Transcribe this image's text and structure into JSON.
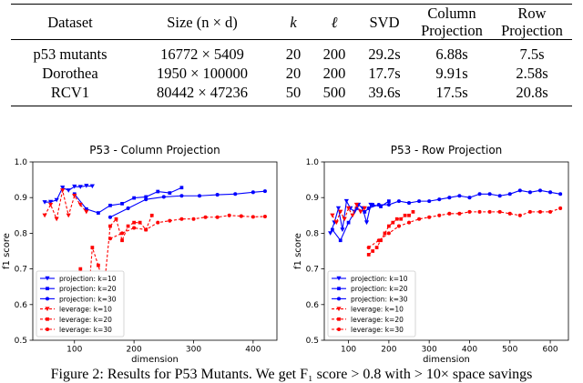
{
  "table": {
    "headers": [
      {
        "lines": [
          "Dataset"
        ]
      },
      {
        "lines": [
          "Size (n × d)"
        ]
      },
      {
        "lines": [
          "k"
        ]
      },
      {
        "lines": [
          "ℓ"
        ]
      },
      {
        "lines": [
          "SVD"
        ]
      },
      {
        "lines": [
          "Column",
          "Projection"
        ]
      },
      {
        "lines": [
          "Row",
          "Projection"
        ]
      }
    ],
    "rows": [
      [
        "p53 mutants",
        "16772 × 5409",
        "20",
        "200",
        "29.2s",
        "6.88s",
        "7.5s"
      ],
      [
        "Dorothea",
        "1950 × 100000",
        "20",
        "200",
        "17.7s",
        "9.91s",
        "2.58s"
      ],
      [
        "RCV1",
        "80442 × 47236",
        "50",
        "500",
        "39.6s",
        "17.5s",
        "20.8s"
      ]
    ]
  },
  "chart_data": [
    {
      "type": "line",
      "title": "P53 - Column Projection",
      "xlabel": "dimension",
      "ylabel": "f1 score",
      "xlim": [
        30,
        440
      ],
      "ylim": [
        0.5,
        1.0
      ],
      "xticks": [
        "100",
        "200",
        "300",
        "400"
      ],
      "xtick_values": [
        100,
        200,
        300,
        400
      ],
      "yticks": [
        "0.5",
        "0.6",
        "0.7",
        "0.8",
        "0.9",
        "1.0"
      ],
      "ytick_values": [
        0.5,
        0.6,
        0.7,
        0.8,
        0.9,
        1.0
      ],
      "series": [
        {
          "name": "projection: k=10",
          "color": "#0000ff",
          "marker": "triangle-down",
          "x": [
            50,
            60,
            70,
            80,
            90,
            100,
            110,
            120,
            130
          ],
          "y": [
            0.887,
            0.888,
            0.893,
            0.928,
            0.92,
            0.931,
            0.93,
            0.933,
            0.932
          ]
        },
        {
          "name": "projection: k=20",
          "color": "#0000ff",
          "marker": "square",
          "x": [
            100,
            120,
            140,
            160,
            180,
            200,
            220,
            240,
            260,
            280
          ],
          "y": [
            0.91,
            0.868,
            0.857,
            0.878,
            0.883,
            0.899,
            0.902,
            0.917,
            0.913,
            0.928
          ]
        },
        {
          "name": "projection: k=30",
          "color": "#0000ff",
          "marker": "circle",
          "x": [
            160,
            190,
            220,
            250,
            280,
            310,
            340,
            370,
            400,
            420
          ],
          "y": [
            0.845,
            0.87,
            0.895,
            0.902,
            0.905,
            0.905,
            0.908,
            0.91,
            0.915,
            0.918
          ]
        },
        {
          "name": "leverage: k=10",
          "color": "#ff0000",
          "marker": "triangle-down",
          "x": [
            50,
            60,
            70,
            80,
            90,
            100,
            110,
            120
          ],
          "y": [
            0.85,
            0.88,
            0.84,
            0.92,
            0.85,
            0.905,
            0.88,
            0.86
          ]
        },
        {
          "name": "leverage: k=20",
          "color": "#ff0000",
          "marker": "square",
          "x": [
            100,
            110,
            120,
            130,
            140,
            150,
            160,
            170,
            180,
            190,
            200,
            210,
            220,
            230
          ],
          "y": [
            0.65,
            0.7,
            0.55,
            0.76,
            0.71,
            0.65,
            0.82,
            0.84,
            0.78,
            0.82,
            0.83,
            0.83,
            0.81,
            0.85
          ]
        },
        {
          "name": "leverage: k=30",
          "color": "#ff0000",
          "marker": "circle",
          "x": [
            160,
            180,
            200,
            220,
            240,
            260,
            280,
            300,
            320,
            340,
            360,
            380,
            400,
            420
          ],
          "y": [
            0.785,
            0.8,
            0.815,
            0.81,
            0.83,
            0.835,
            0.84,
            0.84,
            0.845,
            0.845,
            0.85,
            0.848,
            0.846,
            0.847
          ]
        }
      ]
    },
    {
      "type": "line",
      "title": "P53 - Row Projection",
      "xlabel": "dimension",
      "ylabel": "f1 score",
      "xlim": [
        40,
        645
      ],
      "ylim": [
        0.5,
        1.0
      ],
      "xticks": [
        "100",
        "200",
        "300",
        "400",
        "500",
        "600"
      ],
      "xtick_values": [
        100,
        200,
        300,
        400,
        500,
        600
      ],
      "yticks": [
        "0.5",
        "0.6",
        "0.7",
        "0.8",
        "0.9",
        "1.0"
      ],
      "ytick_values": [
        0.5,
        0.6,
        0.7,
        0.8,
        0.9,
        1.0
      ],
      "legend": "lower-left",
      "series": [
        {
          "name": "projection: k=10",
          "color": "#0000ff",
          "marker": "triangle-down",
          "x": [
            55,
            65,
            75,
            85,
            95,
            105,
            115,
            125,
            135,
            145,
            155
          ],
          "y": [
            0.8,
            0.83,
            0.87,
            0.81,
            0.89,
            0.87,
            0.86,
            0.88,
            0.87,
            0.83,
            0.88
          ]
        },
        {
          "name": "projection: k=20",
          "color": "#0000ff",
          "marker": "square",
          "x": [
            60,
            80,
            100,
            120,
            140,
            160,
            180,
            200
          ],
          "y": [
            0.81,
            0.78,
            0.83,
            0.87,
            0.86,
            0.88,
            0.875,
            0.89
          ]
        },
        {
          "name": "projection: k=30",
          "color": "#0000ff",
          "marker": "circle",
          "x": [
            150,
            175,
            200,
            225,
            250,
            275,
            300,
            325,
            350,
            375,
            400,
            425,
            450,
            475,
            500,
            525,
            550,
            575,
            600,
            625
          ],
          "y": [
            0.87,
            0.88,
            0.88,
            0.89,
            0.885,
            0.89,
            0.89,
            0.895,
            0.9,
            0.905,
            0.9,
            0.91,
            0.91,
            0.905,
            0.91,
            0.92,
            0.915,
            0.92,
            0.915,
            0.91
          ]
        },
        {
          "name": "leverage: k=10",
          "color": "#ff0000",
          "marker": "triangle-down",
          "x": [
            60,
            70,
            80,
            90,
            100,
            110,
            120,
            130,
            140
          ],
          "y": [
            0.85,
            0.83,
            0.86,
            0.84,
            0.87,
            0.85,
            0.88,
            0.86,
            0.87
          ]
        },
        {
          "name": "leverage: k=20",
          "color": "#ff0000",
          "marker": "square",
          "x": [
            150,
            160,
            170,
            180,
            190,
            200,
            210,
            220,
            230,
            240,
            250,
            260
          ],
          "y": [
            0.74,
            0.75,
            0.76,
            0.78,
            0.8,
            0.82,
            0.83,
            0.84,
            0.84,
            0.85,
            0.85,
            0.86
          ]
        },
        {
          "name": "leverage: k=30",
          "color": "#ff0000",
          "marker": "circle",
          "x": [
            150,
            175,
            200,
            225,
            250,
            275,
            300,
            325,
            350,
            375,
            400,
            425,
            450,
            475,
            500,
            525,
            550,
            575,
            600,
            625
          ],
          "y": [
            0.76,
            0.78,
            0.8,
            0.82,
            0.83,
            0.84,
            0.845,
            0.85,
            0.855,
            0.855,
            0.86,
            0.86,
            0.86,
            0.86,
            0.855,
            0.85,
            0.86,
            0.86,
            0.86,
            0.87
          ]
        }
      ]
    }
  ],
  "caption": "Figure 2: Results for P53 Mutants. We get F₁ score > 0.8 with > 10× space savings"
}
